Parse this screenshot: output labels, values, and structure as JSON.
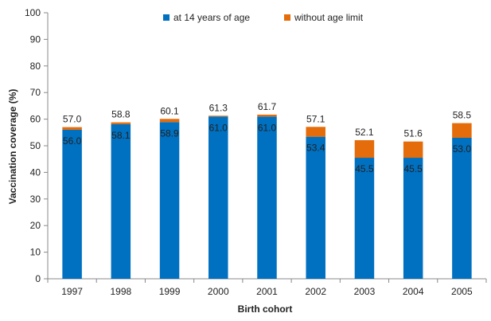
{
  "chart_data": {
    "type": "bar",
    "stacked": true,
    "categories": [
      "1997",
      "1998",
      "1999",
      "2000",
      "2001",
      "2002",
      "2003",
      "2004",
      "2005"
    ],
    "series": [
      {
        "name": "at 14 years of age",
        "color": "#0070C0",
        "values": [
          56.0,
          58.1,
          58.9,
          61.0,
          61.0,
          53.4,
          45.5,
          45.5,
          53.0
        ],
        "labels": [
          "56.0",
          "58.1",
          "58.9",
          "61.0",
          "61.0",
          "53.4",
          "45.5",
          "45.5",
          "53.0"
        ]
      },
      {
        "name": "without age limit",
        "color": "#E46C0A",
        "totals": [
          57.0,
          58.8,
          60.1,
          61.3,
          61.7,
          57.1,
          52.1,
          51.6,
          58.5
        ],
        "labels": [
          "57.0",
          "58.8",
          "60.1",
          "61.3",
          "61.7",
          "57.1",
          "52.1",
          "51.6",
          "58.5"
        ]
      }
    ],
    "title": "",
    "xlabel": "Birth cohort",
    "ylabel": "Vaccination coverage (%)",
    "ylim": [
      0,
      100
    ],
    "yticks": [
      0,
      10,
      20,
      30,
      40,
      50,
      60,
      70,
      80,
      90,
      100
    ],
    "grid": false,
    "legend": "top-center"
  }
}
